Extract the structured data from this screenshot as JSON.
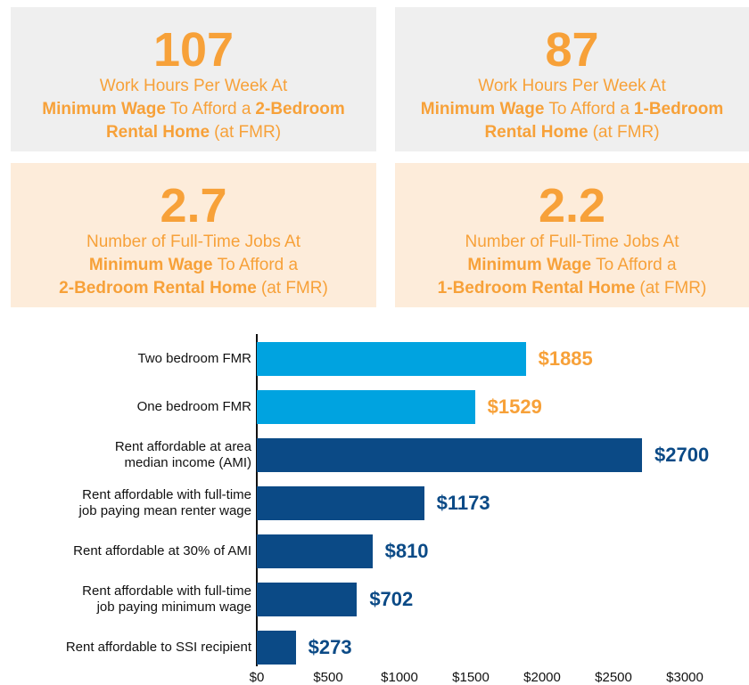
{
  "cards": [
    {
      "number": "107",
      "background": "#efefef",
      "lines": [
        [
          {
            "text": "Work Hours Per Week At",
            "bold": false
          }
        ],
        [
          {
            "text": "Minimum Wage",
            "bold": true
          },
          {
            "text": "To Afford a",
            "bold": false
          },
          {
            "text": "2-Bedroom",
            "bold": true
          }
        ],
        [
          {
            "text": "Rental Home",
            "bold": true
          },
          {
            "text": "(at FMR)",
            "bold": false
          }
        ]
      ]
    },
    {
      "number": "87",
      "background": "#efefef",
      "lines": [
        [
          {
            "text": "Work Hours Per Week At",
            "bold": false
          }
        ],
        [
          {
            "text": "Minimum Wage",
            "bold": true
          },
          {
            "text": "To Afford a",
            "bold": false
          },
          {
            "text": "1-Bedroom",
            "bold": true
          }
        ],
        [
          {
            "text": "Rental Home",
            "bold": true
          },
          {
            "text": "(at FMR)",
            "bold": false
          }
        ]
      ]
    },
    {
      "number": "2.7",
      "background": "#fdecda",
      "lines": [
        [
          {
            "text": "Number of Full-Time Jobs At",
            "bold": false
          }
        ],
        [
          {
            "text": "Minimum Wage",
            "bold": true
          },
          {
            "text": "To Afford a",
            "bold": false
          }
        ],
        [
          {
            "text": "2-Bedroom Rental Home",
            "bold": true
          },
          {
            "text": "(at FMR)",
            "bold": false
          }
        ]
      ]
    },
    {
      "number": "2.2",
      "background": "#fdecda",
      "lines": [
        [
          {
            "text": "Number of Full-Time Jobs At",
            "bold": false
          }
        ],
        [
          {
            "text": "Minimum Wage",
            "bold": true
          },
          {
            "text": "To Afford a",
            "bold": false
          }
        ],
        [
          {
            "text": "1-Bedroom Rental Home",
            "bold": true
          },
          {
            "text": "(at FMR)",
            "bold": false
          }
        ]
      ]
    }
  ],
  "chart_data": {
    "type": "hbar",
    "categories": [
      "Two bedroom FMR",
      "One bedroom FMR",
      "Rent affordable at area\nmedian income (AMI)",
      "Rent affordable with full-time\njob paying mean renter wage",
      "Rent affordable at 30% of AMI",
      "Rent affordable with full-time\njob paying minimum wage",
      "Rent affordable to SSI recipient"
    ],
    "values": [
      1885,
      1529,
      2700,
      1173,
      810,
      702,
      273
    ],
    "value_labels": [
      "$1885",
      "$1529",
      "$2700",
      "$1173",
      "$810",
      "$702",
      "$273"
    ],
    "colors": [
      "#00a3e0",
      "#00a3e0",
      "#0b4a86",
      "#0b4a86",
      "#0b4a86",
      "#0b4a86",
      "#0b4a86"
    ],
    "label_colors": [
      "#f7a139",
      "#f7a139",
      "#0b4a86",
      "#0b4a86",
      "#0b4a86",
      "#0b4a86",
      "#0b4a86"
    ],
    "xlim": [
      0,
      3000
    ],
    "xticks": [
      {
        "value": 0,
        "label": "$0"
      },
      {
        "value": 500,
        "label": "$500"
      },
      {
        "value": 1000,
        "label": "$1000"
      },
      {
        "value": 1500,
        "label": "$1500"
      },
      {
        "value": 2000,
        "label": "$2000"
      },
      {
        "value": 2500,
        "label": "$2500"
      },
      {
        "value": 3000,
        "label": "$3000"
      }
    ]
  }
}
